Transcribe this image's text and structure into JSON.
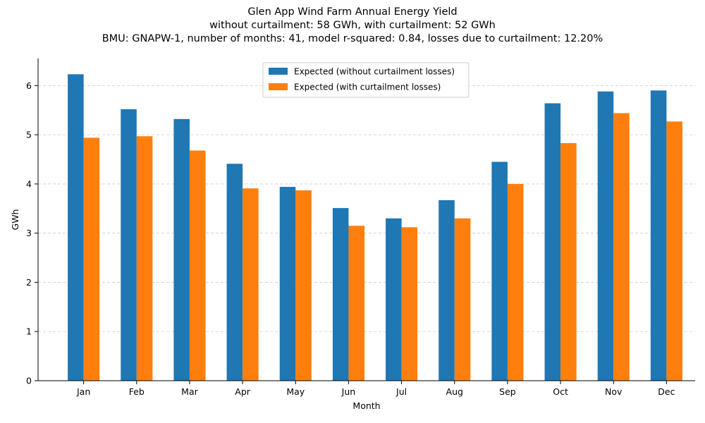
{
  "chart_data": {
    "type": "bar",
    "title_lines": [
      "Glen App Wind Farm Annual Energy Yield",
      "without curtailment: 58 GWh, with curtailment: 52 GWh",
      "BMU: GNAPW-1, number of months: 41, model r-squared: 0.84, losses due to curtailment: 12.20%"
    ],
    "xlabel": "Month",
    "ylabel": "GWh",
    "categories": [
      "Jan",
      "Feb",
      "Mar",
      "Apr",
      "May",
      "Jun",
      "Jul",
      "Aug",
      "Sep",
      "Oct",
      "Nov",
      "Dec"
    ],
    "series": [
      {
        "name": "Expected (without curtailment losses)",
        "color": "#1f77b4",
        "values": [
          6.23,
          5.52,
          5.32,
          4.41,
          3.94,
          3.51,
          3.3,
          3.67,
          4.45,
          5.64,
          5.88,
          5.9
        ]
      },
      {
        "name": "Expected (with curtailment losses)",
        "color": "#ff7f0e",
        "values": [
          4.94,
          4.97,
          4.68,
          3.91,
          3.87,
          3.15,
          3.12,
          3.3,
          4.0,
          4.83,
          5.44,
          5.27
        ]
      }
    ],
    "ylim": [
      0,
      6.55
    ],
    "yticks": [
      0,
      1,
      2,
      3,
      4,
      5,
      6
    ],
    "grid": "y-dashed",
    "legend": "top-center"
  }
}
